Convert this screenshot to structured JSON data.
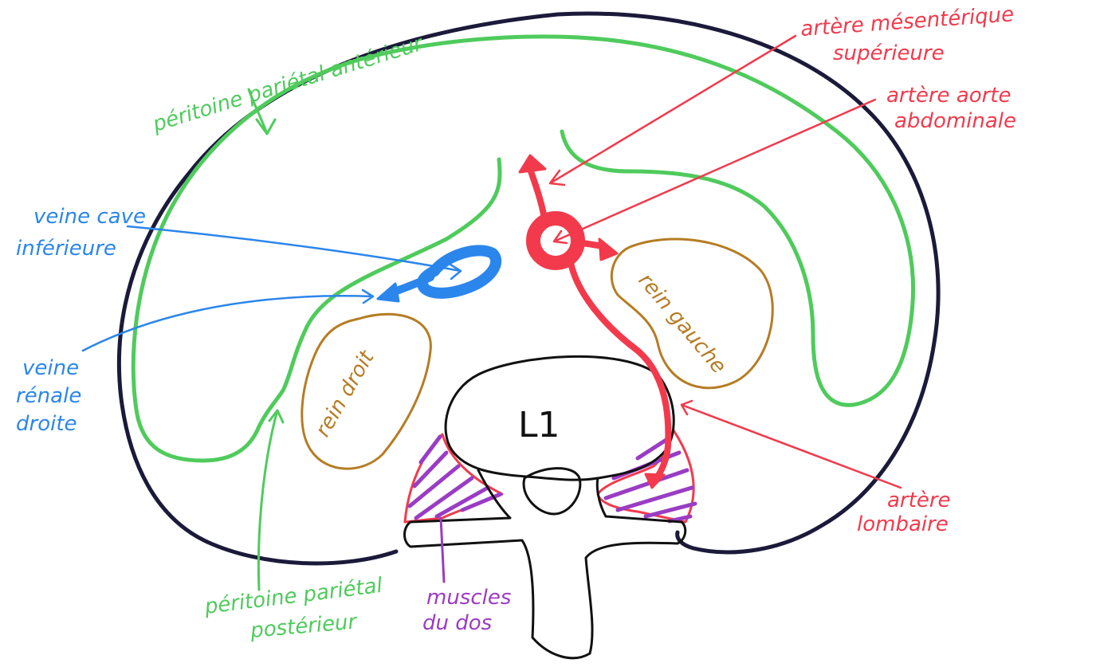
{
  "labels": {
    "peritoine_anterieur": "péritoine pariétal antérieur",
    "peritoine_posterieur_line1": "péritoine pariétal",
    "peritoine_posterieur_line2": "postérieur",
    "artere_mesenterique_line1": "artère mésentérique",
    "artere_mesenterique_line2": "supérieure",
    "artere_aorte_line1": "artère aorte",
    "artere_aorte_line2": "abdominale",
    "artere_lombaire_line1": "artère",
    "artere_lombaire_line2": "lombaire",
    "veine_cave_line1": "veine cave",
    "veine_cave_line2": "inférieure",
    "veine_renale_line1": "veine",
    "veine_renale_line2": "rénale",
    "veine_renale_line3": "droite",
    "rein_droit": "rein droit",
    "rein_gauche": "rein gauche",
    "vertebre": "L1",
    "muscles_line1": "muscles",
    "muscles_line2": "du dos"
  },
  "colors": {
    "body_outline": "#1b1a3a",
    "peritoneum": "#4fcb5c",
    "artery": "#f23a4c",
    "vein": "#2b86ec",
    "kidney": "#b67c24",
    "muscle_hatch": "#9a3cc4",
    "vertebra": "#111111"
  }
}
